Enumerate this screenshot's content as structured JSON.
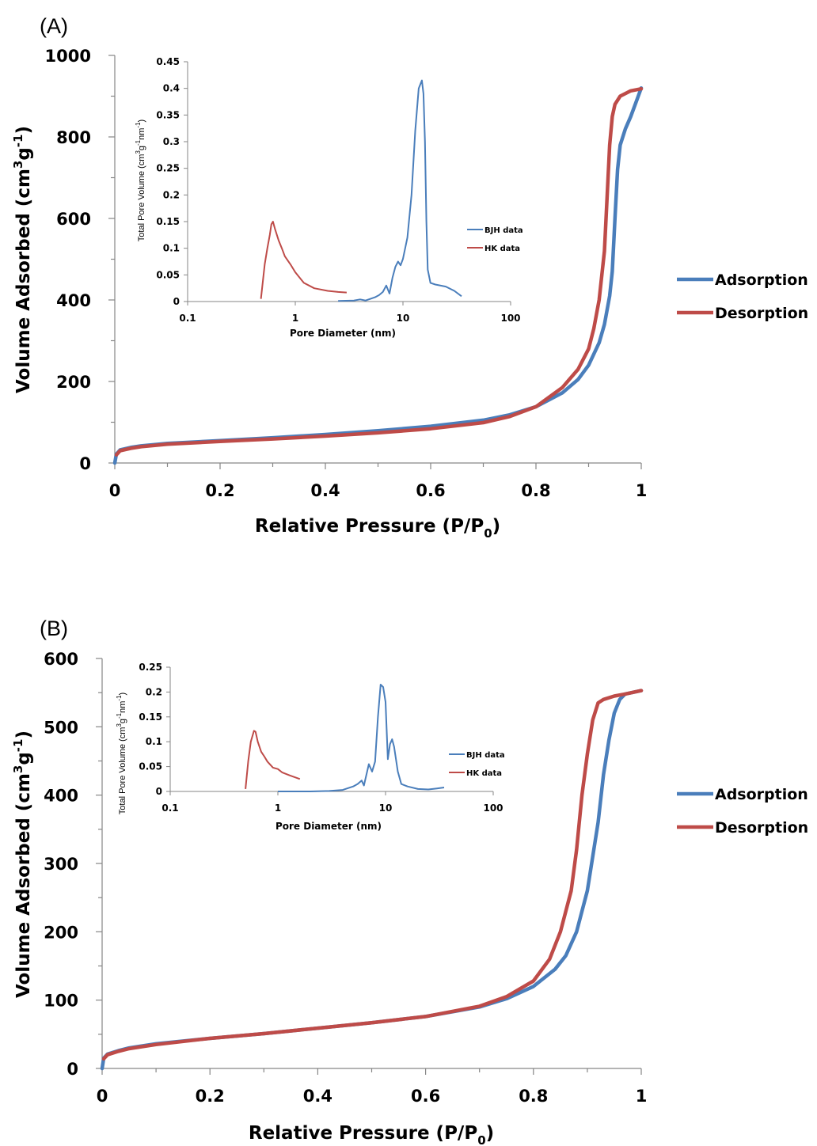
{
  "colors": {
    "adsorption": "#4a7ebb",
    "desorption": "#be4b48",
    "bjh": "#4a7ebb",
    "hk": "#be4b48",
    "axis": "#868686"
  },
  "chart_data": [
    {
      "panel": "(A)",
      "type": "line",
      "xlabel": "Relative Pressure (P/P0)",
      "xlabel_parts": {
        "main": "Relative Pressure (P/P",
        "sub": "0",
        "end": ")"
      },
      "ylabel": "Volume Adsorbed (cm3g-1)",
      "ylabel_parts": {
        "main": "Volume Adsorbed (cm",
        "sup1": "3",
        "mid": "g",
        "sup2": "-1",
        "end": ")"
      },
      "xlim": [
        0,
        1
      ],
      "ylim": [
        0,
        1000
      ],
      "xticks": [
        0,
        0.2,
        0.4,
        0.6,
        0.8,
        1
      ],
      "xtick_labels": [
        "0",
        "0.2",
        "0.4",
        "0.6",
        "0.8",
        "1"
      ],
      "yticks": [
        0,
        200,
        400,
        600,
        800,
        1000
      ],
      "ytick_labels": [
        "0",
        "200",
        "400",
        "600",
        "800",
        "1000"
      ],
      "legend_position": "right",
      "series": [
        {
          "name": "Adsorption",
          "x": [
            0,
            0.003,
            0.01,
            0.03,
            0.05,
            0.1,
            0.2,
            0.3,
            0.4,
            0.5,
            0.6,
            0.7,
            0.75,
            0.8,
            0.85,
            0.88,
            0.9,
            0.92,
            0.93,
            0.94,
            0.945,
            0.95,
            0.955,
            0.96,
            0.97,
            0.98,
            0.99,
            1.0
          ],
          "y": [
            0,
            22,
            32,
            38,
            42,
            48,
            55,
            62,
            70,
            79,
            90,
            105,
            118,
            138,
            172,
            205,
            240,
            295,
            340,
            410,
            470,
            600,
            720,
            780,
            820,
            850,
            885,
            920
          ]
        },
        {
          "name": "Desorption",
          "x": [
            0.003,
            0.01,
            0.03,
            0.05,
            0.1,
            0.2,
            0.3,
            0.4,
            0.5,
            0.6,
            0.7,
            0.75,
            0.8,
            0.85,
            0.88,
            0.9,
            0.91,
            0.92,
            0.93,
            0.935,
            0.94,
            0.945,
            0.95,
            0.96,
            0.98,
            1.0
          ],
          "y": [
            20,
            30,
            36,
            40,
            46,
            53,
            59,
            66,
            74,
            84,
            99,
            114,
            138,
            185,
            230,
            280,
            330,
            400,
            520,
            650,
            780,
            850,
            880,
            900,
            913,
            918
          ]
        }
      ],
      "inset": {
        "type": "line",
        "xscale": "log",
        "xlabel": "Pore Diameter (nm)",
        "ylabel": "Total Pore Volume (cm3g-1nm-1)",
        "ylabel_parts": {
          "main": "Total Pore Volume (cm",
          "sup1": "3",
          "mid": "g",
          "sup2": "-1",
          "mid2": "nm",
          "sup3": "-1",
          "end": ")"
        },
        "xlim": [
          0.1,
          100
        ],
        "ylim": [
          0,
          0.45
        ],
        "xtick_labels": [
          "0.1",
          "1",
          "10",
          "100"
        ],
        "yticks": [
          0,
          0.05,
          0.1,
          0.15,
          0.2,
          0.25,
          0.3,
          0.35,
          0.4,
          0.45
        ],
        "ytick_labels": [
          "0",
          "0.05",
          "0.1",
          "0.15",
          "0.2",
          "0.25",
          "0.3",
          "0.35",
          "0.4",
          "0.45"
        ],
        "legend_position": "right",
        "series": [
          {
            "name": "BJH data",
            "x": [
              2.5,
              3.5,
              4,
              4.5,
              5.5,
              6,
              6.5,
              7,
              7.5,
              8,
              8.5,
              9,
              9.5,
              10,
              11,
              12,
              13,
              14,
              15,
              15.5,
              16,
              16.5,
              17,
              18,
              20,
              25,
              30,
              35
            ],
            "y": [
              0.001,
              0.002,
              0.004,
              0.002,
              0.008,
              0.012,
              0.018,
              0.03,
              0.015,
              0.045,
              0.065,
              0.075,
              0.068,
              0.08,
              0.12,
              0.2,
              0.32,
              0.4,
              0.415,
              0.39,
              0.3,
              0.15,
              0.06,
              0.035,
              0.032,
              0.028,
              0.02,
              0.01
            ]
          },
          {
            "name": "HK data",
            "x": [
              0.48,
              0.52,
              0.55,
              0.58,
              0.6,
              0.62,
              0.65,
              0.7,
              0.75,
              0.8,
              0.9,
              1.0,
              1.2,
              1.5,
              2.0,
              2.5,
              3.0
            ],
            "y": [
              0.005,
              0.07,
              0.1,
              0.125,
              0.145,
              0.15,
              0.135,
              0.115,
              0.1,
              0.085,
              0.07,
              0.055,
              0.035,
              0.025,
              0.02,
              0.018,
              0.017
            ]
          }
        ]
      }
    },
    {
      "panel": "(B)",
      "type": "line",
      "xlabel": "Relative Pressure (P/P0)",
      "xlabel_parts": {
        "main": "Relative Pressure (P/P",
        "sub": "0",
        "end": ")"
      },
      "ylabel": "Volume Adsorbed (cm3g-1)",
      "ylabel_parts": {
        "main": "Volume Adsorbed (cm",
        "sup1": "3",
        "mid": "g",
        "sup2": "-1",
        "end": ")"
      },
      "xlim": [
        0,
        1
      ],
      "ylim": [
        0,
        600
      ],
      "xticks": [
        0,
        0.2,
        0.4,
        0.6,
        0.8,
        1
      ],
      "xtick_labels": [
        "0",
        "0.2",
        "0.4",
        "0.6",
        "0.8",
        "1"
      ],
      "yticks": [
        0,
        100,
        200,
        300,
        400,
        500,
        600
      ],
      "ytick_labels": [
        "0",
        "100",
        "200",
        "300",
        "400",
        "500",
        "600"
      ],
      "legend_position": "right",
      "series": [
        {
          "name": "Adsorption",
          "x": [
            0,
            0.003,
            0.01,
            0.03,
            0.05,
            0.1,
            0.2,
            0.3,
            0.4,
            0.5,
            0.6,
            0.7,
            0.75,
            0.8,
            0.84,
            0.86,
            0.88,
            0.9,
            0.92,
            0.93,
            0.94,
            0.95,
            0.96,
            0.97,
            1.0
          ],
          "y": [
            0,
            15,
            21,
            26,
            30,
            36,
            44,
            51,
            59,
            67,
            76,
            90,
            102,
            120,
            145,
            165,
            200,
            260,
            360,
            430,
            480,
            520,
            540,
            548,
            553
          ]
        },
        {
          "name": "Desorption",
          "x": [
            0.003,
            0.01,
            0.03,
            0.05,
            0.1,
            0.2,
            0.3,
            0.4,
            0.5,
            0.6,
            0.7,
            0.75,
            0.8,
            0.83,
            0.85,
            0.87,
            0.88,
            0.89,
            0.9,
            0.91,
            0.92,
            0.93,
            0.95,
            0.97,
            1.0
          ],
          "y": [
            14,
            20,
            25,
            29,
            35,
            44,
            51,
            59,
            67,
            76,
            91,
            105,
            128,
            160,
            200,
            260,
            320,
            400,
            460,
            510,
            535,
            540,
            545,
            548,
            553
          ]
        }
      ],
      "inset": {
        "type": "line",
        "xscale": "log",
        "xlabel": "Pore Diameter (nm)",
        "ylabel": "Total Pore Volume (cm3g-1nm-1)",
        "ylabel_parts": {
          "main": "Total Pore Volume (cm",
          "sup1": "3",
          "mid": "g",
          "sup2": "-1",
          "mid2": "nm",
          "sup3": "-1",
          "end": ")"
        },
        "xlim": [
          0.1,
          100
        ],
        "ylim": [
          0,
          0.25
        ],
        "xtick_labels": [
          "0.1",
          "1",
          "10",
          "100"
        ],
        "yticks": [
          0,
          0.05,
          0.1,
          0.15,
          0.2,
          0.25
        ],
        "ytick_labels": [
          "0",
          "0.05",
          "0.1",
          "0.15",
          "0.2",
          "0.25"
        ],
        "legend_position": "right",
        "series": [
          {
            "name": "BJH data",
            "x": [
              1.0,
              2.0,
              3.0,
              4.0,
              5.0,
              5.5,
              6.0,
              6.3,
              7.0,
              7.5,
              8.0,
              8.5,
              9.0,
              9.5,
              10.0,
              10.5,
              11.0,
              11.5,
              12.0,
              13.0,
              14.0,
              16.0,
              20.0,
              25.0,
              30.0,
              35.0
            ],
            "y": [
              0.0,
              0.0,
              0.001,
              0.003,
              0.01,
              0.015,
              0.022,
              0.012,
              0.055,
              0.04,
              0.06,
              0.15,
              0.215,
              0.21,
              0.18,
              0.065,
              0.095,
              0.105,
              0.09,
              0.04,
              0.015,
              0.01,
              0.005,
              0.004,
              0.006,
              0.008
            ]
          },
          {
            "name": "HK data",
            "x": [
              0.5,
              0.53,
              0.56,
              0.6,
              0.62,
              0.65,
              0.7,
              0.75,
              0.8,
              0.9,
              1.0,
              1.1,
              1.3,
              1.6
            ],
            "y": [
              0.005,
              0.06,
              0.1,
              0.122,
              0.12,
              0.1,
              0.08,
              0.07,
              0.06,
              0.048,
              0.045,
              0.038,
              0.032,
              0.025
            ]
          }
        ]
      }
    }
  ]
}
